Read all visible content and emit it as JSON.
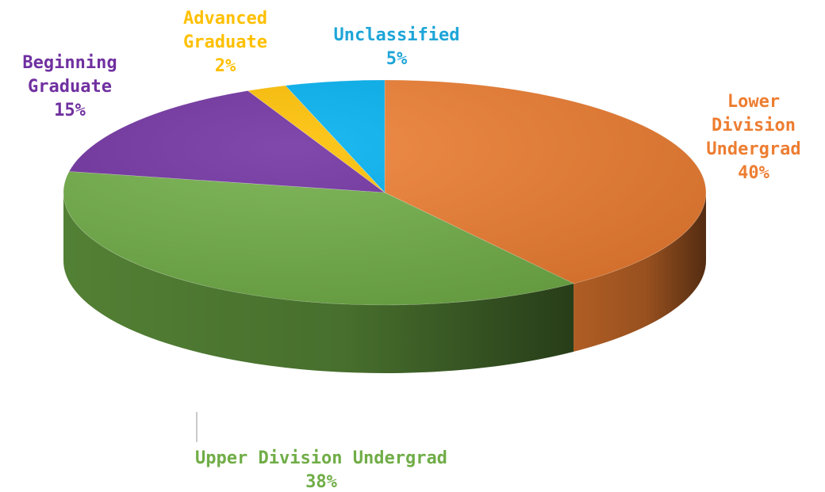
{
  "chart_data": {
    "type": "pie",
    "title": "",
    "categories": [
      "Lower Division Undergrad",
      "Upper Division Undergrad",
      "Beginning Graduate",
      "Advanced Graduate",
      "Unclassified"
    ],
    "values": [
      40,
      38,
      15,
      2,
      5
    ],
    "series": [
      {
        "values": [
          40,
          38,
          15,
          2,
          5
        ]
      }
    ],
    "label_lines": [
      [
        "Lower",
        "Division",
        "Undergrad"
      ],
      [
        "Upper Division Undergrad"
      ],
      [
        "Beginning",
        "Graduate"
      ],
      [
        "Advanced",
        "Graduate"
      ],
      [
        "Unclassified"
      ]
    ],
    "value_labels": [
      "40%",
      "38%",
      "15%",
      "2%",
      "5%"
    ],
    "colors": [
      "#ED7D31",
      "#70AD47",
      "#7030A0",
      "#FFC000",
      "#00B0F0"
    ],
    "label_colors": [
      "#ED7D31",
      "#70AD47",
      "#7030A0",
      "#FFC000",
      "#1EA5D8"
    ],
    "style": "3d",
    "legend": "none",
    "start_angle_deg": -90,
    "direction": "clockwise"
  }
}
